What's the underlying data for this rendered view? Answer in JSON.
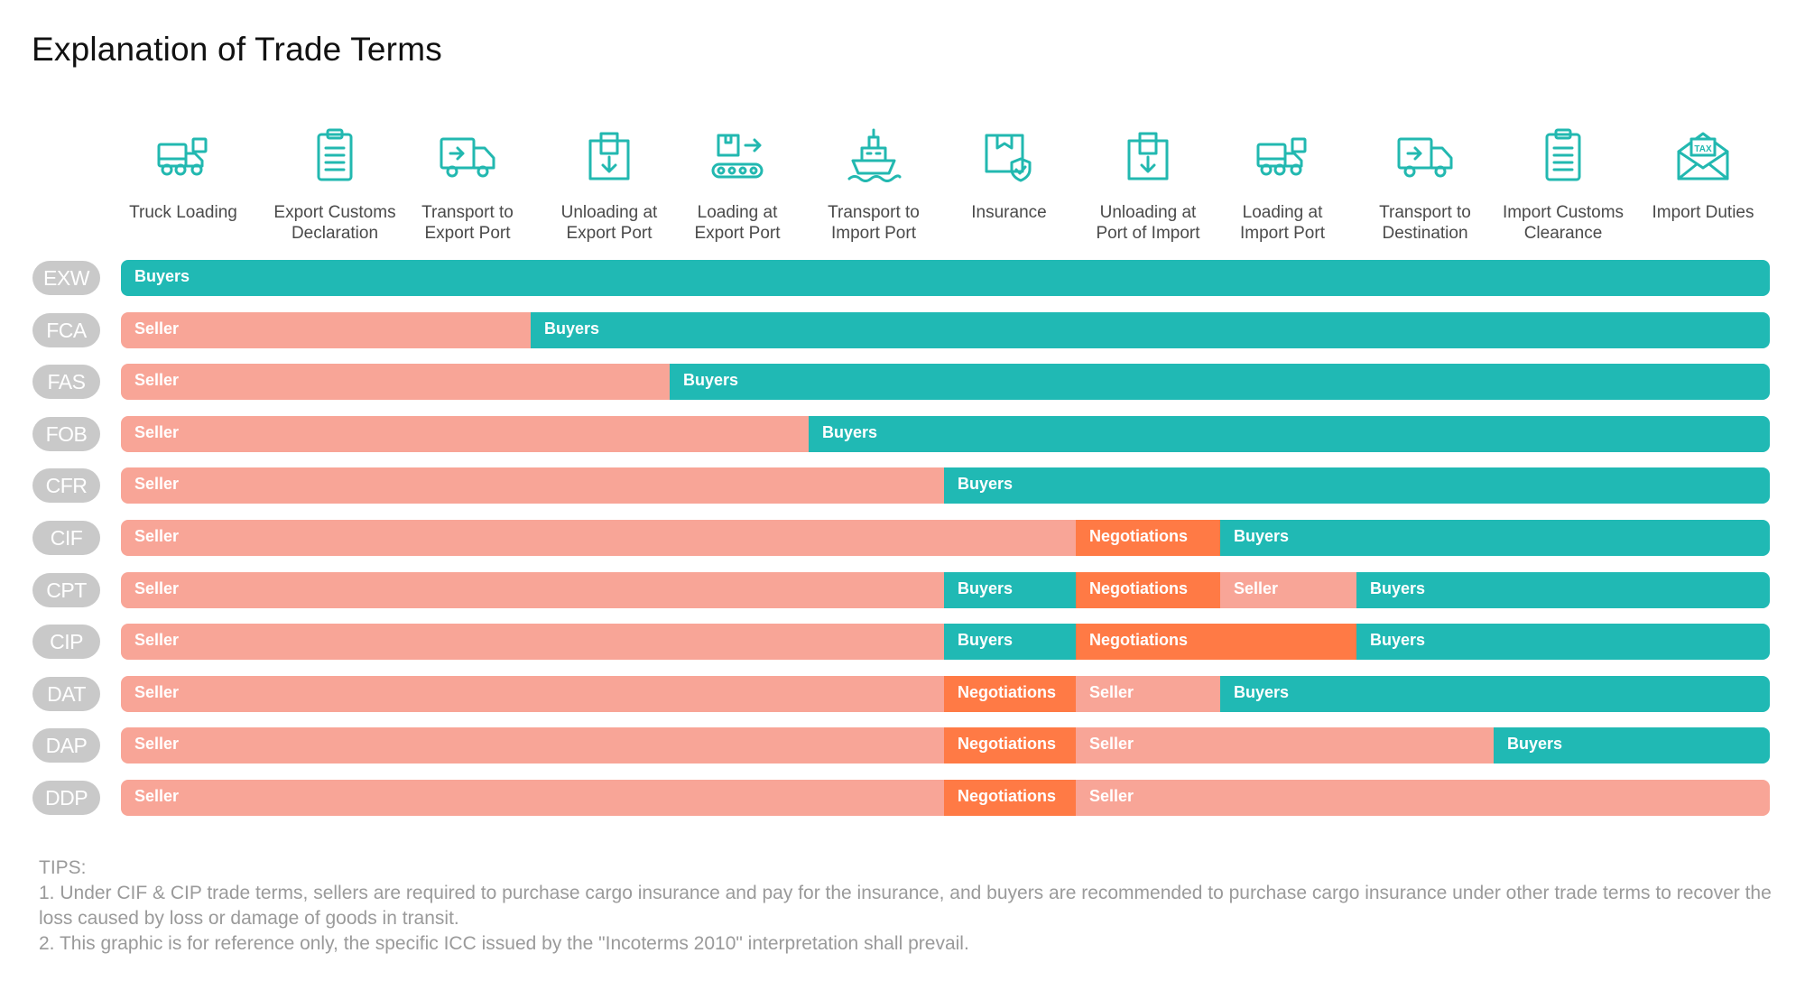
{
  "title": "Explanation of Trade Terms",
  "colors": {
    "seller": "#f8a597",
    "buyers": "#20b9b4",
    "negotiations": "#ff7a45",
    "term_pill": "#c9c9c9",
    "icon": "#22b8b0"
  },
  "steps": [
    {
      "label": "Truck Loading",
      "icon": "truck-loading-icon"
    },
    {
      "label": "Export Customs\nDeclaration",
      "icon": "clipboard-icon"
    },
    {
      "label": "Transport to\nExport Port",
      "icon": "delivery-truck-icon"
    },
    {
      "label": "Unloading at\nExport Port",
      "icon": "box-unload-icon"
    },
    {
      "label": "Loading at\nExport Port",
      "icon": "conveyor-icon"
    },
    {
      "label": "Transport to\nImport Port",
      "icon": "ship-icon"
    },
    {
      "label": "Insurance",
      "icon": "insurance-box-icon"
    },
    {
      "label": "Unloading at\nPort of Import",
      "icon": "box-unload-icon"
    },
    {
      "label": "Loading at\nImport Port",
      "icon": "truck-loading-icon"
    },
    {
      "label": "Transport to\nDestination",
      "icon": "delivery-truck-icon"
    },
    {
      "label": "Import Customs\nClearance",
      "icon": "clipboard-icon"
    },
    {
      "label": "Import Duties",
      "icon": "tax-envelope-icon"
    }
  ],
  "terms": [
    {
      "term": "EXW",
      "segments": [
        {
          "party": "buyers",
          "label": "Buyers",
          "from": 0,
          "to": 12
        }
      ]
    },
    {
      "term": "FCA",
      "segments": [
        {
          "party": "seller",
          "label": "Seller",
          "from": 0,
          "to": 3
        },
        {
          "party": "buyers",
          "label": "Buyers",
          "from": 3,
          "to": 12
        }
      ]
    },
    {
      "term": "FAS",
      "segments": [
        {
          "party": "seller",
          "label": "Seller",
          "from": 0,
          "to": 4
        },
        {
          "party": "buyers",
          "label": "Buyers",
          "from": 4,
          "to": 12
        }
      ]
    },
    {
      "term": "FOB",
      "segments": [
        {
          "party": "seller",
          "label": "Seller",
          "from": 0,
          "to": 5
        },
        {
          "party": "buyers",
          "label": "Buyers",
          "from": 5,
          "to": 12
        }
      ]
    },
    {
      "term": "CFR",
      "segments": [
        {
          "party": "seller",
          "label": "Seller",
          "from": 0,
          "to": 6
        },
        {
          "party": "buyers",
          "label": "Buyers",
          "from": 6,
          "to": 12
        }
      ]
    },
    {
      "term": "CIF",
      "segments": [
        {
          "party": "seller",
          "label": "Seller",
          "from": 0,
          "to": 7
        },
        {
          "party": "negotiations",
          "label": "Negotiations",
          "from": 7,
          "to": 8
        },
        {
          "party": "buyers",
          "label": "Buyers",
          "from": 8,
          "to": 12
        }
      ]
    },
    {
      "term": "CPT",
      "segments": [
        {
          "party": "seller",
          "label": "Seller",
          "from": 0,
          "to": 6
        },
        {
          "party": "buyers",
          "label": "Buyers",
          "from": 6,
          "to": 7
        },
        {
          "party": "negotiations",
          "label": "Negotiations",
          "from": 7,
          "to": 8
        },
        {
          "party": "seller",
          "label": "Seller",
          "from": 8,
          "to": 9
        },
        {
          "party": "buyers",
          "label": "Buyers",
          "from": 9,
          "to": 12
        }
      ]
    },
    {
      "term": "CIP",
      "segments": [
        {
          "party": "seller",
          "label": "Seller",
          "from": 0,
          "to": 6
        },
        {
          "party": "buyers",
          "label": "Buyers",
          "from": 6,
          "to": 7
        },
        {
          "party": "negotiations",
          "label": "Negotiations",
          "from": 7,
          "to": 9
        },
        {
          "party": "buyers",
          "label": "Buyers",
          "from": 9,
          "to": 12
        }
      ]
    },
    {
      "term": "DAT",
      "segments": [
        {
          "party": "seller",
          "label": "Seller",
          "from": 0,
          "to": 6
        },
        {
          "party": "negotiations",
          "label": "Negotiations",
          "from": 6,
          "to": 7
        },
        {
          "party": "seller",
          "label": "Seller",
          "from": 7,
          "to": 8
        },
        {
          "party": "buyers",
          "label": "Buyers",
          "from": 8,
          "to": 12
        }
      ]
    },
    {
      "term": "DAP",
      "segments": [
        {
          "party": "seller",
          "label": "Seller",
          "from": 0,
          "to": 6
        },
        {
          "party": "negotiations",
          "label": "Negotiations",
          "from": 6,
          "to": 7
        },
        {
          "party": "seller",
          "label": "Seller",
          "from": 7,
          "to": 10
        },
        {
          "party": "buyers",
          "label": "Buyers",
          "from": 10,
          "to": 12
        }
      ]
    },
    {
      "term": "DDP",
      "segments": [
        {
          "party": "seller",
          "label": "Seller",
          "from": 0,
          "to": 6
        },
        {
          "party": "negotiations",
          "label": "Negotiations",
          "from": 6,
          "to": 7
        },
        {
          "party": "seller",
          "label": "Seller",
          "from": 7,
          "to": 12
        }
      ]
    }
  ],
  "tips": {
    "heading": "TIPS:",
    "items": [
      "1. Under CIF & CIP trade terms, sellers are required to purchase cargo insurance and pay for the insurance, and buyers are recommended to purchase cargo insurance under other trade terms to recover the loss caused by loss or damage of goods in transit.",
      "2. This graphic is for reference only, the specific ICC issued by the \"Incoterms 2010\" interpretation shall prevail."
    ]
  }
}
